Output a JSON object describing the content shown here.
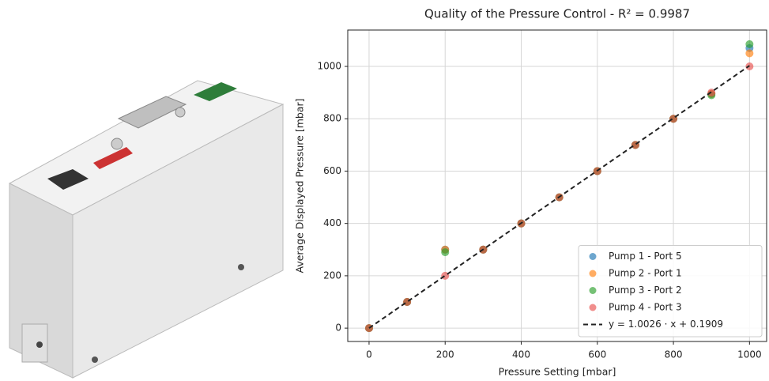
{
  "chart_data": {
    "type": "scatter",
    "title": "Quality of the Pressure Control - R² = 0.9987",
    "x_label": "Pressure Setting [mbar]",
    "y_label": "Average Displayed Pressure [mbar]",
    "x": [
      0,
      100,
      200,
      300,
      400,
      500,
      600,
      700,
      800,
      900,
      1000
    ],
    "series": [
      {
        "name": "Pump 1 - Port 5",
        "color": "#1f77b4",
        "values": [
          0,
          100,
          300,
          300,
          400,
          500,
          600,
          700,
          800,
          895,
          1070
        ]
      },
      {
        "name": "Pump 2 - Port 1",
        "color": "#ff7f0e",
        "values": [
          0,
          100,
          300,
          300,
          400,
          500,
          600,
          700,
          800,
          895,
          1050
        ]
      },
      {
        "name": "Pump 3 - Port 2",
        "color": "#2ca02c",
        "values": [
          0,
          100,
          290,
          300,
          400,
          500,
          600,
          700,
          800,
          890,
          1085
        ]
      },
      {
        "name": "Pump 4 - Port 3",
        "color": "#e8514f",
        "values": [
          0,
          100,
          200,
          300,
          400,
          500,
          600,
          700,
          800,
          900,
          1000
        ]
      }
    ],
    "fit": {
      "name": "y = 1.0026 · x + 0.1909",
      "slope": 1.0026,
      "intercept": 0.1909,
      "x": [
        0,
        1000
      ],
      "color": "#222222"
    },
    "xlim": [
      -56,
      1045
    ],
    "ylim": [
      -51,
      1139
    ],
    "xticks": [
      0,
      200,
      400,
      600,
      800,
      1000
    ],
    "yticks": [
      0,
      200,
      400,
      600,
      800,
      1000
    ],
    "grid": true,
    "legend": "lower right"
  }
}
